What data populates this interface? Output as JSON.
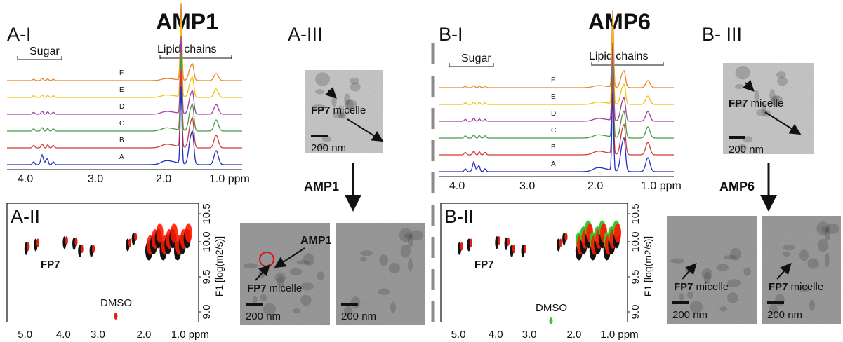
{
  "panel_a": {
    "title": "AMP1",
    "nmr": {
      "label": "A-I",
      "regions": [
        "Sugar",
        "Lipid chains"
      ],
      "traces": [
        "F",
        "E",
        "D",
        "C",
        "B",
        "A"
      ],
      "x_ticks": [
        "4.0",
        "3.0",
        "2.0",
        "1.0 ppm"
      ]
    },
    "dosy": {
      "label": "A-II",
      "x_ticks": [
        "5.0",
        "4.0",
        "3.0",
        "2.0",
        "1.0 ppm"
      ],
      "y_ticks": [
        "10.5",
        "10.0",
        "9.5",
        "9.0"
      ],
      "y_title": "F1 [log(m2/s)]",
      "compound": "FP7",
      "solvent": "DMSO"
    },
    "tem": {
      "label": "A-III",
      "before": {
        "particle": "FP7",
        "descriptor": "micelle",
        "scale_bar": "200 nm"
      },
      "additive": "AMP1",
      "after": [
        {
          "pointer": "AMP1",
          "particle": "FP7",
          "descriptor": "micelle",
          "scale_bar": "200 nm"
        },
        {
          "scale_bar": "200 nm"
        }
      ]
    }
  },
  "panel_b": {
    "title": "AMP6",
    "nmr": {
      "label": "B-I",
      "regions": [
        "Sugar",
        "Lipid chains"
      ],
      "traces": [
        "F",
        "E",
        "D",
        "C",
        "B",
        "A"
      ],
      "x_ticks": [
        "4.0",
        "3.0",
        "2.0",
        "1.0 ppm"
      ]
    },
    "dosy": {
      "label": "B-II",
      "x_ticks": [
        "5.0",
        "4.0",
        "3.0",
        "2.0",
        "1.0 ppm"
      ],
      "y_ticks": [
        "10.5",
        "10.0",
        "9.5",
        "9.0"
      ],
      "y_title": "F1 [log(m2/s)]",
      "compound": "FP7",
      "solvent": "DMSO"
    },
    "tem": {
      "label": "B- III",
      "before": {
        "particle": "FP7",
        "descriptor": "micelle",
        "scale_bar": "200 nm"
      },
      "additive": "AMP6",
      "after": [
        {
          "particle": "FP7",
          "descriptor": "micelle",
          "scale_bar": "200 nm"
        },
        {
          "particle": "FP7",
          "descriptor": "micelle",
          "scale_bar": "200 nm"
        }
      ]
    }
  }
}
